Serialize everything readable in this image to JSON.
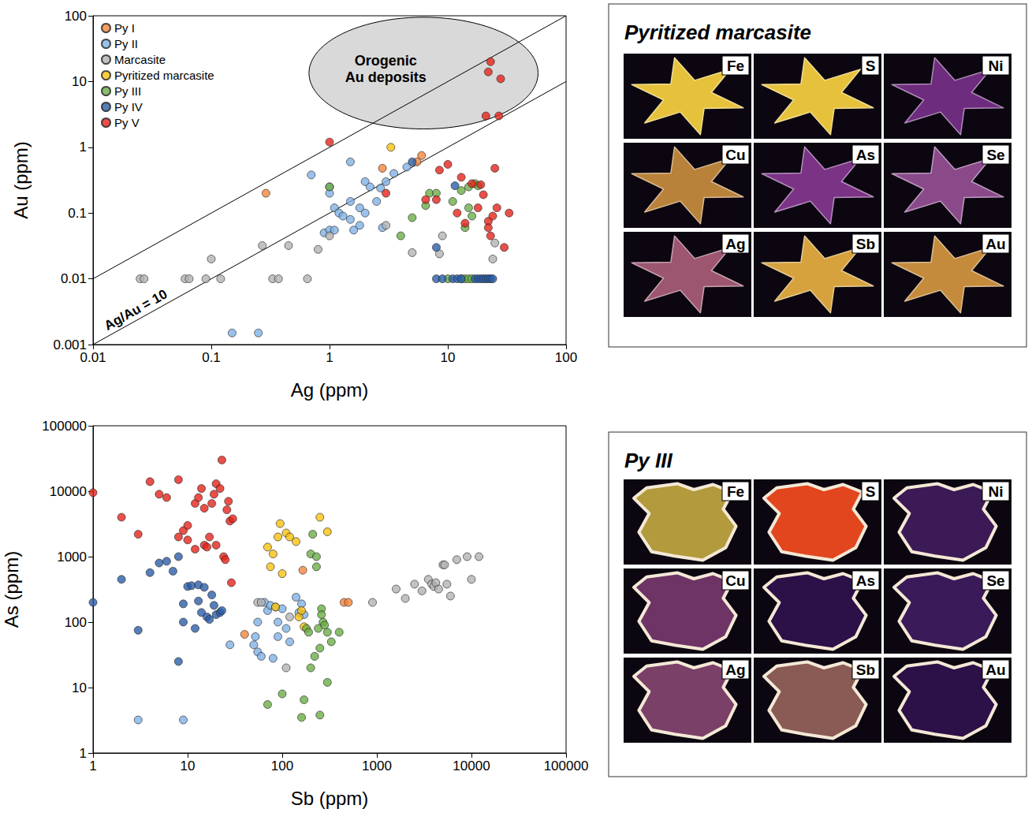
{
  "chart_data": [
    {
      "type": "scatter",
      "xlabel": "Ag (ppm)",
      "ylabel": "Au (ppm)",
      "log": true,
      "xlim": [
        0.01,
        100
      ],
      "ylim": [
        0.001,
        100
      ],
      "xticks": [
        0.01,
        0.1,
        1,
        10,
        100
      ],
      "yticks": [
        0.001,
        0.01,
        0.1,
        1,
        10,
        100
      ],
      "grid": false,
      "legend": "upper left",
      "marker": "circle",
      "series": [
        {
          "name": "Py I",
          "color": "#f4853b",
          "x": [
            0.29,
            2.8,
            5.5,
            6.0
          ],
          "values": [
            0.2,
            0.48,
            0.6,
            0.75
          ]
        },
        {
          "name": "Py II",
          "color": "#7fb2e5",
          "x": [
            0.15,
            0.25,
            0.7,
            0.9,
            1.0,
            1.0,
            1.0,
            1.1,
            1.1,
            1.2,
            1.3,
            1.5,
            1.5,
            1.5,
            1.6,
            1.8,
            1.8,
            2.0,
            2.0,
            2.2,
            2.5,
            2.7,
            2.8,
            3.0,
            3.5,
            4.5
          ],
          "values": [
            0.0015,
            0.0015,
            0.38,
            0.05,
            0.25,
            0.2,
            0.055,
            0.055,
            0.12,
            0.1,
            0.09,
            0.6,
            0.15,
            0.08,
            0.055,
            0.12,
            0.065,
            0.3,
            0.1,
            0.25,
            0.15,
            0.24,
            0.06,
            0.3,
            0.4,
            0.5
          ]
        },
        {
          "name": "Marcasite",
          "color": "#b3b3b3",
          "x": [
            0.025,
            0.027,
            0.06,
            0.065,
            0.09,
            0.1,
            0.12,
            0.27,
            0.33,
            0.37,
            0.45,
            0.65,
            0.8,
            1.0,
            3.0,
            5.0,
            8.5,
            9.0,
            24,
            25
          ],
          "values": [
            0.01,
            0.01,
            0.01,
            0.01,
            0.01,
            0.02,
            0.01,
            0.032,
            0.01,
            0.01,
            0.032,
            0.01,
            0.028,
            0.045,
            0.065,
            0.025,
            0.024,
            0.045,
            0.02,
            0.035
          ]
        },
        {
          "name": "Pyritized marcasite",
          "color": "#f7c20f",
          "x": [
            3.3
          ],
          "values": [
            1.0
          ]
        },
        {
          "name": "Py III",
          "color": "#6cae46",
          "x": [
            1.0,
            4.0,
            5.0,
            6.5,
            7.0,
            8.0,
            11,
            13,
            14,
            15,
            15,
            16,
            17,
            18,
            10,
            13,
            14,
            15,
            16
          ],
          "values": [
            0.25,
            0.045,
            0.085,
            0.13,
            0.2,
            0.2,
            0.15,
            0.22,
            0.06,
            0.25,
            0.12,
            0.09,
            0.28,
            0.26,
            0.01,
            0.01,
            0.01,
            0.01,
            0.01
          ]
        },
        {
          "name": "Py IV",
          "color": "#2c5ea8",
          "x": [
            5.0,
            8.0,
            8.0,
            9.0,
            11,
            11.5,
            12,
            13,
            17,
            18,
            19,
            20,
            21,
            22,
            23,
            24
          ],
          "values": [
            0.6,
            0.03,
            0.01,
            0.01,
            0.01,
            0.26,
            0.01,
            0.01,
            0.01,
            0.01,
            0.01,
            0.01,
            0.01,
            0.01,
            0.01,
            0.01
          ]
        },
        {
          "name": "Py V",
          "color": "#e3241c",
          "x": [
            1.0,
            3.0,
            6.5,
            8.0,
            8.5,
            10,
            12,
            13,
            14,
            16,
            18,
            19,
            20,
            22,
            22,
            23,
            24,
            25,
            26,
            30,
            33,
            21,
            22,
            23,
            27,
            28
          ],
          "values": [
            1.2,
            0.2,
            0.16,
            0.16,
            0.45,
            0.55,
            0.1,
            0.35,
            0.07,
            0.28,
            0.12,
            0.27,
            0.19,
            0.075,
            0.06,
            0.045,
            0.09,
            0.48,
            0.12,
            0.03,
            0.1,
            3.0,
            14,
            20,
            3.0,
            11
          ]
        }
      ],
      "reference_lines": [
        {
          "x": [
            0.01,
            100
          ],
          "values": [
            0.01,
            100
          ]
        },
        {
          "x": [
            0.01,
            100
          ],
          "values": [
            0.001,
            10
          ],
          "label": "Ag/Au = 10"
        }
      ],
      "regions": [
        {
          "label": "Orogenic Au deposits",
          "xlim": [
            0.67,
            58
          ],
          "ylim": [
            1.9,
            95
          ]
        }
      ]
    },
    {
      "type": "scatter",
      "xlabel": "Sb (ppm)",
      "ylabel": "As (ppm)",
      "log": true,
      "xlim": [
        1,
        100000
      ],
      "ylim": [
        1,
        100000
      ],
      "xticks": [
        1,
        10,
        100,
        1000,
        10000,
        100000
      ],
      "yticks": [
        1,
        10,
        100,
        1000,
        10000,
        100000
      ],
      "grid": false,
      "marker": "circle",
      "series": [
        {
          "name": "Py I",
          "color": "#f4853b",
          "x": [
            40,
            165,
            450,
            500
          ],
          "values": [
            65,
            620,
            200,
            200
          ]
        },
        {
          "name": "Py II",
          "color": "#7fb2e5",
          "x": [
            3,
            9,
            28,
            50,
            52,
            55,
            55,
            60,
            65,
            70,
            75,
            80,
            85,
            90,
            90,
            100,
            110,
            120,
            140,
            150,
            160,
            170
          ],
          "values": [
            3.2,
            3.2,
            45,
            45,
            60,
            100,
            35,
            30,
            200,
            150,
            180,
            28,
            170,
            100,
            60,
            160,
            80,
            50,
            240,
            140,
            190,
            130
          ]
        },
        {
          "name": "Marcasite",
          "color": "#b3b3b3",
          "x": [
            55,
            60,
            110,
            120,
            900,
            1600,
            2000,
            2500,
            3000,
            3500,
            3800,
            4000,
            4200,
            4500,
            5000,
            5200,
            5500,
            6000,
            7000,
            9000,
            10000,
            12000
          ],
          "values": [
            200,
            200,
            20,
            120,
            200,
            320,
            230,
            380,
            300,
            450,
            380,
            350,
            400,
            320,
            750,
            750,
            380,
            250,
            900,
            1000,
            450,
            1000
          ]
        },
        {
          "name": "Pyritized marcasite",
          "color": "#f7c20f",
          "x": [
            70,
            75,
            80,
            85,
            90,
            95,
            100,
            110,
            120,
            140,
            150,
            160,
            170,
            250,
            300
          ],
          "values": [
            1400,
            700,
            1100,
            170,
            2000,
            3200,
            550,
            2300,
            2000,
            1700,
            120,
            150,
            85,
            4000,
            2400
          ]
        },
        {
          "name": "Py III",
          "color": "#6cae46",
          "x": [
            70,
            100,
            160,
            170,
            180,
            190,
            200,
            200,
            210,
            220,
            230,
            230,
            240,
            250,
            250,
            260,
            260,
            270,
            280,
            300,
            300,
            330,
            400
          ],
          "values": [
            5.5,
            8,
            3.5,
            6.5,
            80,
            70,
            1100,
            20,
            2200,
            30,
            1000,
            700,
            80,
            40,
            3.8,
            160,
            130,
            100,
            90,
            12,
            70,
            50,
            70
          ]
        },
        {
          "name": "Py IV",
          "color": "#2c5ea8",
          "x": [
            1,
            2,
            3,
            4,
            5,
            6,
            7,
            8,
            8,
            9,
            9,
            10,
            11,
            12,
            13,
            13,
            14,
            15,
            16,
            17,
            18,
            19,
            20,
            22,
            23
          ],
          "values": [
            200,
            450,
            75,
            570,
            800,
            850,
            600,
            25,
            1000,
            190,
            100,
            350,
            360,
            80,
            370,
            210,
            140,
            340,
            120,
            110,
            260,
            180,
            130,
            140,
            150
          ]
        },
        {
          "name": "Py V",
          "color": "#e3241c",
          "x": [
            1,
            2,
            3,
            4,
            5,
            6,
            8,
            8,
            9,
            10,
            10,
            12,
            12,
            13,
            14,
            15,
            15,
            16,
            17,
            18,
            19,
            20,
            20,
            22,
            23,
            24,
            25,
            26,
            27,
            28,
            29,
            30
          ],
          "values": [
            9500,
            4000,
            2200,
            14000,
            9000,
            8000,
            15000,
            2000,
            2500,
            1800,
            3000,
            6500,
            1300,
            8000,
            11000,
            1500,
            5500,
            1400,
            2000,
            6500,
            9000,
            13000,
            1500,
            11000,
            30000,
            1000,
            900,
            5200,
            7000,
            3500,
            400,
            3800
          ]
        }
      ]
    }
  ],
  "element_maps": [
    {
      "title": "Pyritized marcasite",
      "maps": [
        {
          "element": "Fe",
          "color": "#e6c23c"
        },
        {
          "element": "S",
          "color": "#e6c23c"
        },
        {
          "element": "Ni",
          "color": "#6e2c7e"
        },
        {
          "element": "Cu",
          "color": "#b9823a"
        },
        {
          "element": "As",
          "color": "#7a3385"
        },
        {
          "element": "Se",
          "color": "#8a4a8a"
        },
        {
          "element": "Ag",
          "color": "#9c5670"
        },
        {
          "element": "Sb",
          "color": "#d6a23e"
        },
        {
          "element": "Au",
          "color": "#c48b3c"
        }
      ]
    },
    {
      "title": "Py III",
      "maps": [
        {
          "element": "Fe",
          "color": "#b39a3c"
        },
        {
          "element": "S",
          "color": "#e2461e"
        },
        {
          "element": "Ni",
          "color": "#3c1a55"
        },
        {
          "element": "Cu",
          "color": "#6e3466"
        },
        {
          "element": "As",
          "color": "#2c1048"
        },
        {
          "element": "Se",
          "color": "#3a1a58"
        },
        {
          "element": "Ag",
          "color": "#7a4068"
        },
        {
          "element": "Sb",
          "color": "#8a5a55"
        },
        {
          "element": "Au",
          "color": "#2c1048"
        }
      ]
    }
  ]
}
